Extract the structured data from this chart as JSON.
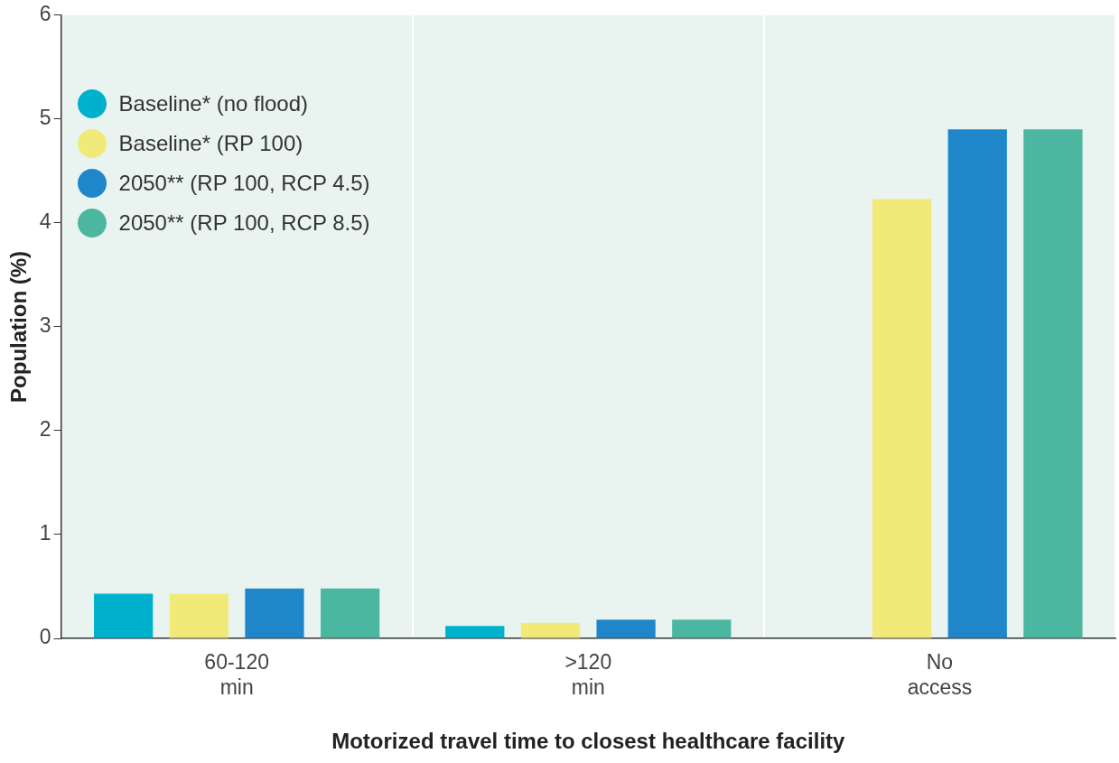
{
  "chart_data": {
    "type": "bar",
    "xlabel": "Motorized travel time to closest healthcare facility",
    "ylabel": "Population (%)",
    "categories": [
      "60-120 min",
      ">120 min",
      "No access"
    ],
    "series": [
      {
        "name": "Baseline* (no flood)",
        "color": "#00b1cd",
        "values": [
          0.43,
          0.12,
          0
        ]
      },
      {
        "name": "Baseline* (RP 100)",
        "color": "#f2ea78",
        "values": [
          0.43,
          0.15,
          4.23
        ]
      },
      {
        "name": "2050** (RP 100, RCP 4.5)",
        "color": "#1f87c9",
        "values": [
          0.48,
          0.18,
          4.9
        ]
      },
      {
        "name": "2050** (RP 100, RCP 8.5)",
        "color": "#4bb7a0",
        "values": [
          0.48,
          0.18,
          4.9
        ]
      }
    ],
    "ylim": [
      0,
      6
    ],
    "yticks": [
      0,
      1,
      2,
      3,
      4,
      5,
      6
    ],
    "grid": "x",
    "legend": "top left"
  }
}
